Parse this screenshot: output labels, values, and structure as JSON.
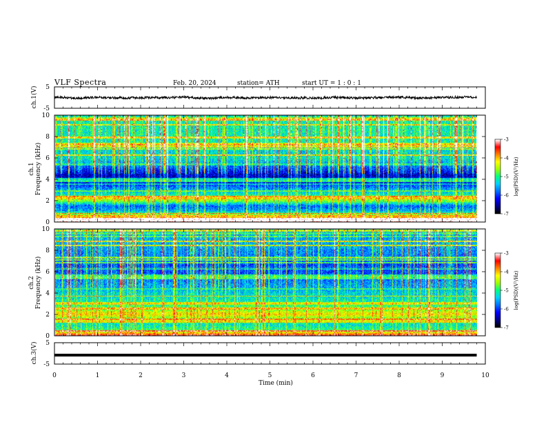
{
  "header": {
    "title": "VLF  Spectra",
    "date": "Feb. 20, 2024",
    "station": "station= ATH",
    "start_ut": "start  UT  =    1  : 0   : 1"
  },
  "colors": {
    "waveform": "#000000",
    "frame": "#000000",
    "colormap_stops": [
      "#000000",
      "#00008b",
      "#0000ff",
      "#0070ff",
      "#00d0ff",
      "#00ff80",
      "#a0ff00",
      "#ffff00",
      "#ff8000",
      "#ff0000",
      "#ffffff"
    ]
  },
  "chart_data": [
    {
      "type": "line",
      "panel": "ch1-waveform",
      "ylabel": "ch.1(V)",
      "ylim": [
        -5,
        5
      ],
      "yticks": [
        "5",
        "-5"
      ],
      "xlim": [
        0,
        10
      ],
      "series": [
        {
          "x": [
            0,
            0.5,
            1,
            1.5,
            2,
            2.5,
            3,
            3.5,
            4,
            4.5,
            5,
            5.5,
            6,
            6.5,
            7,
            7.5,
            8,
            8.5,
            9,
            9.5,
            9.8
          ],
          "values": [
            0.2,
            -0.3,
            0.1,
            -0.2,
            0.0,
            -0.1,
            0.2,
            -0.4,
            0.1,
            -0.2,
            0.0,
            -0.1,
            -0.3,
            0.1,
            -0.2,
            0.0,
            0.1,
            -0.2,
            0.0,
            0.2,
            0.1
          ]
        }
      ]
    },
    {
      "type": "heatmap",
      "panel": "ch1-spectrogram",
      "ylabel_lines": [
        "ch.1",
        "Frequency  (kHz)"
      ],
      "ylim": [
        0,
        10
      ],
      "yticks": [
        "0",
        "2",
        "4",
        "6",
        "8",
        "10"
      ],
      "xlim": [
        0,
        10
      ],
      "data_end_min": 9.8,
      "colorbar": {
        "label": "log(PSD)(V²/Hz)",
        "range": [
          -7,
          -3
        ],
        "ticks": [
          "-3",
          "-4",
          "-5",
          "-6",
          "-7"
        ]
      },
      "freq_profile_khz": [
        0,
        0.5,
        1,
        1.5,
        2,
        2.5,
        3,
        3.5,
        4,
        4.5,
        5,
        5.5,
        6,
        6.5,
        7,
        7.5,
        8,
        8.5,
        9,
        9.5,
        10
      ],
      "freq_profile_logpsd": [
        -3.2,
        -4.2,
        -5.6,
        -5.9,
        -4.6,
        -5.2,
        -5.6,
        -6.1,
        -6.5,
        -6.4,
        -6.0,
        -5.6,
        -5.3,
        -5.4,
        -5.3,
        -5.2,
        -5.2,
        -5.2,
        -5.2,
        -5.2,
        -5.3
      ]
    },
    {
      "type": "heatmap",
      "panel": "ch2-spectrogram",
      "ylabel_lines": [
        "ch.2",
        "Frequency  (kHz)"
      ],
      "ylim": [
        0,
        10
      ],
      "yticks": [
        "0",
        "2",
        "4",
        "6",
        "8",
        "10"
      ],
      "xlim": [
        0,
        10
      ],
      "data_end_min": 9.8,
      "colorbar": {
        "label": "log(PSD)(V²/Hz)",
        "range": [
          -7,
          -3
        ],
        "ticks": [
          "-3",
          "-4",
          "-5",
          "-6",
          "-7"
        ]
      },
      "freq_profile_khz": [
        0,
        0.5,
        1,
        1.5,
        2,
        2.5,
        3,
        3.5,
        4,
        4.5,
        5,
        5.5,
        6,
        6.5,
        7,
        7.5,
        8,
        8.5,
        9,
        9.5,
        10
      ],
      "freq_profile_logpsd": [
        -3.4,
        -5.0,
        -5.3,
        -4.9,
        -4.2,
        -4.8,
        -5.1,
        -5.3,
        -5.4,
        -5.6,
        -5.7,
        -5.9,
        -6.0,
        -6.1,
        -5.9,
        -5.8,
        -5.7,
        -5.6,
        -5.6,
        -5.6,
        -5.7
      ]
    },
    {
      "type": "line",
      "panel": "ch3-waveform",
      "ylabel": "ch.3(V)",
      "ylim": [
        -5,
        5
      ],
      "yticks": [
        "5",
        "-5"
      ],
      "xlim": [
        0,
        10
      ],
      "series": [
        {
          "x": [
            0,
            9.8
          ],
          "values": [
            -0.8,
            -0.8
          ]
        }
      ]
    }
  ],
  "xaxis": {
    "label": "Time  (min)",
    "ticks": [
      "0",
      "1",
      "2",
      "3",
      "4",
      "5",
      "6",
      "7",
      "8",
      "9",
      "10"
    ]
  }
}
